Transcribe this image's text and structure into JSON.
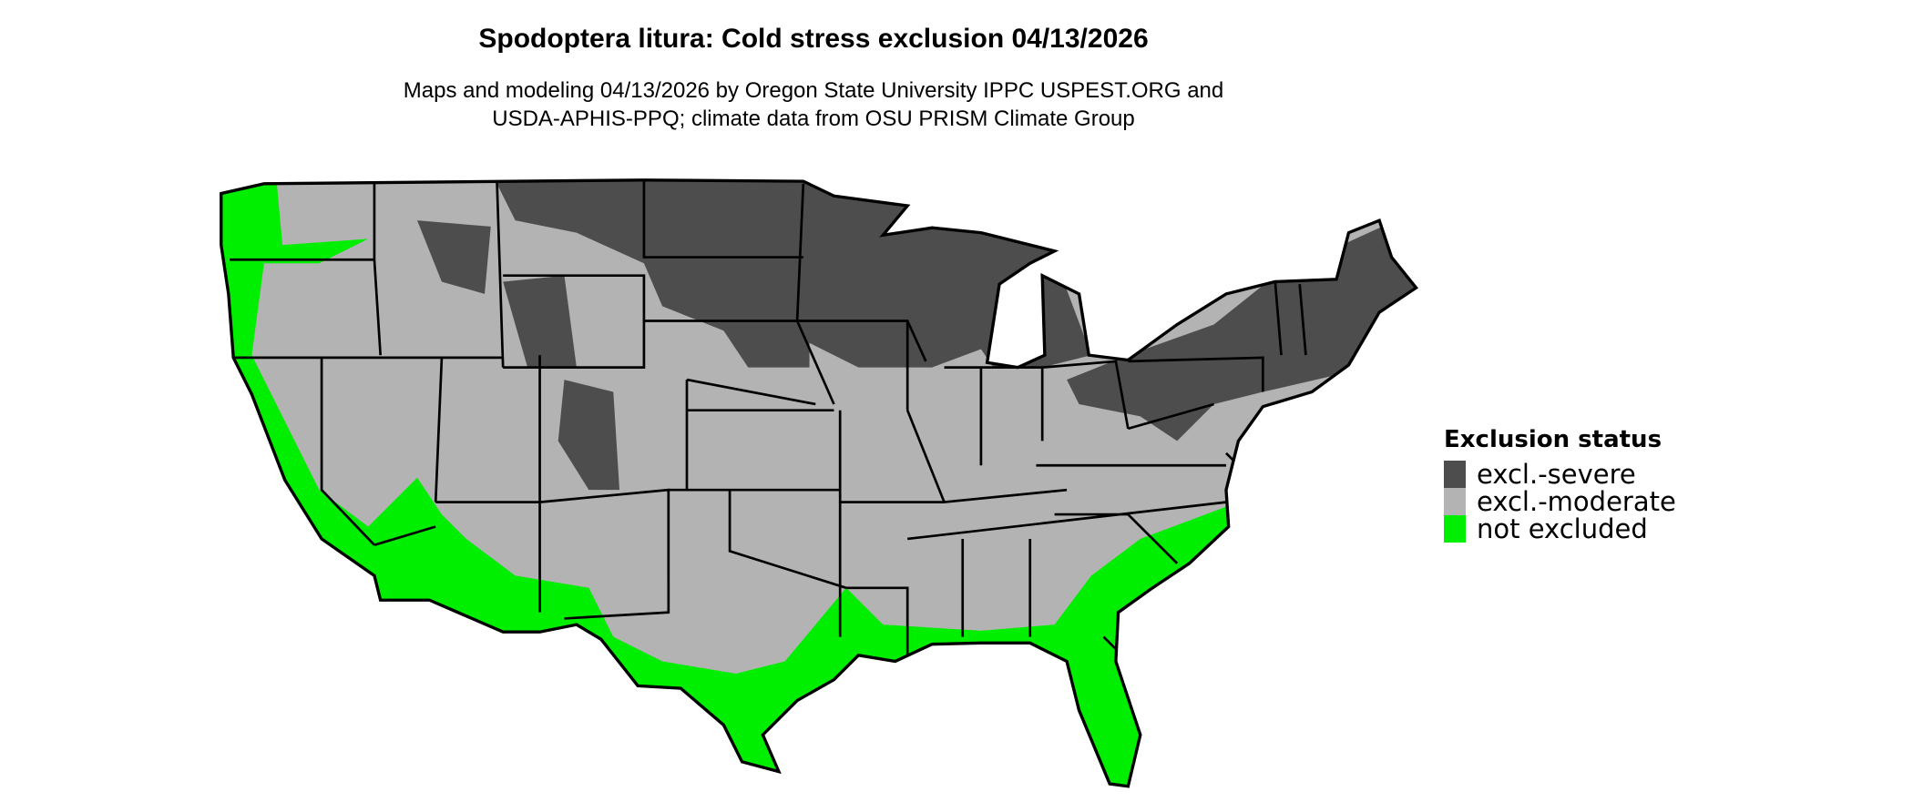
{
  "title": "Spodoptera litura: Cold stress exclusion 04/13/2026",
  "subtitle_line1": "Maps and modeling 04/13/2026 by Oregon State University IPPC USPEST.ORG and",
  "subtitle_line2": "USDA-APHIS-PPQ; climate data from OSU PRISM Climate Group",
  "legend": {
    "title": "Exclusion status",
    "items": [
      {
        "label": "excl.-severe",
        "color": "#4d4d4d"
      },
      {
        "label": "excl.-moderate",
        "color": "#b3b3b3"
      },
      {
        "label": "not excluded",
        "color": "#00ee00"
      }
    ]
  }
}
